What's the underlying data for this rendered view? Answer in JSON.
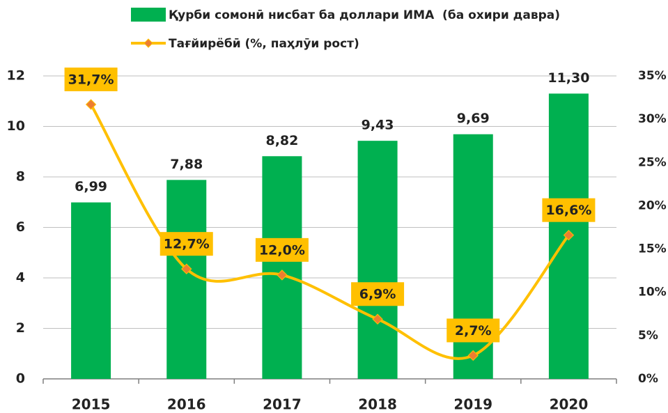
{
  "chart_data": {
    "type": "combo",
    "categories": [
      "2015",
      "2016",
      "2017",
      "2018",
      "2019",
      "2020"
    ],
    "series": [
      {
        "name": "Қурби сомонӣ нисбат ба доллари ИМА  (ба охири давра)",
        "type": "bar",
        "color": "#00b050",
        "values": [
          6.99,
          7.88,
          8.82,
          9.43,
          9.69,
          11.3
        ],
        "value_labels": [
          "6,99",
          "7,88",
          "8,82",
          "9,43",
          "9,69",
          "11,30"
        ]
      },
      {
        "name": "Тағйирёбӣ (%, паҳлӯи рост)",
        "type": "line",
        "axis": "y2",
        "color": "#ffc000",
        "marker_color": "#ed7d31",
        "values": [
          31.7,
          12.7,
          12.0,
          6.9,
          2.7,
          16.6
        ],
        "value_labels": [
          "31,7%",
          "12,7%",
          "12,0%",
          "6,9%",
          "2,7%",
          "16,6%"
        ]
      }
    ],
    "ylim": [
      0,
      12
    ],
    "yticks": [
      0,
      2,
      4,
      6,
      8,
      10,
      12
    ],
    "y2lim": [
      0,
      35
    ],
    "y2ticks": [
      {
        "value": 0,
        "label": "0%"
      },
      {
        "value": 5,
        "label": "5%"
      },
      {
        "value": 10,
        "label": "10%"
      },
      {
        "value": 15,
        "label": "15%"
      },
      {
        "value": 20,
        "label": "20%"
      },
      {
        "value": 25,
        "label": "25%"
      },
      {
        "value": 30,
        "label": "30%"
      },
      {
        "value": 35,
        "label": "35%"
      }
    ],
    "grid": true
  }
}
